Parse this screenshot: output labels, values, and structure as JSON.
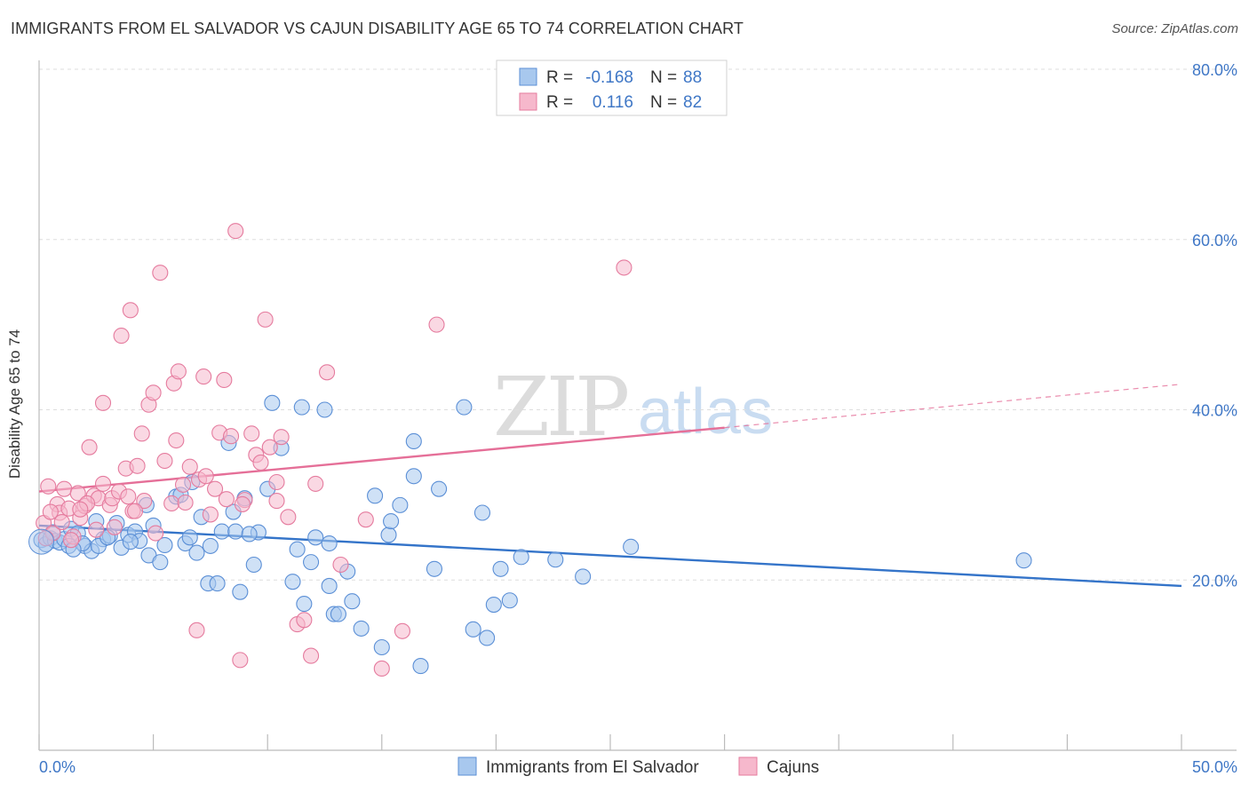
{
  "title": "IMMIGRANTS FROM EL SALVADOR VS CAJUN DISABILITY AGE 65 TO 74 CORRELATION CHART",
  "source": "Source: ZipAtlas.com",
  "watermark": {
    "zip": "ZIP",
    "atlas": "atlas"
  },
  "legend_box": {
    "rows": [
      {
        "r_label": "R =",
        "r_value": "-0.168",
        "n_label": "N =",
        "n_value": "88",
        "color": "#a8c8ee"
      },
      {
        "r_label": "R =",
        "r_value": "0.116",
        "n_label": "N =",
        "n_value": "82",
        "color": "#f6b8cc"
      }
    ]
  },
  "bottom_legend": [
    {
      "label": "Immigrants from El Salvador",
      "color": "#a8c8ee"
    },
    {
      "label": "Cajuns",
      "color": "#f6b8cc"
    }
  ],
  "chart_data": {
    "type": "scatter",
    "title": "IMMIGRANTS FROM EL SALVADOR VS CAJUN DISABILITY AGE 65 TO 74 CORRELATION CHART",
    "xlabel": "",
    "ylabel": "Disability Age 65 to 74",
    "xlim": [
      0,
      50
    ],
    "ylim": [
      0,
      80
    ],
    "x_tick_labels": [
      {
        "value": 0,
        "label": "0.0%"
      },
      {
        "value": 50,
        "label": "50.0%"
      }
    ],
    "y_tick_labels": [
      {
        "value": 20,
        "label": "20.0%"
      },
      {
        "value": 40,
        "label": "40.0%"
      },
      {
        "value": 60,
        "label": "60.0%"
      },
      {
        "value": 80,
        "label": "80.0%"
      }
    ],
    "grid": true,
    "legend_position": "top-center",
    "series": [
      {
        "name": "Immigrants from El Salvador",
        "color": "#5b8fd6",
        "fill": "#a8c8ee",
        "trend": {
          "x0": 0,
          "y0": 26.4,
          "x1": 50,
          "y1": 19.3,
          "color": "#3474c9"
        },
        "points": [
          [
            0.1,
            24.7
          ],
          [
            0.3,
            24.2
          ],
          [
            0.5,
            24.9
          ],
          [
            0.7,
            24.6
          ],
          [
            0.9,
            24.4
          ],
          [
            1.1,
            24.8
          ],
          [
            1.3,
            24.0
          ],
          [
            1.4,
            26.0
          ],
          [
            1.7,
            25.5
          ],
          [
            2.0,
            24.0
          ],
          [
            2.3,
            23.4
          ],
          [
            2.5,
            26.9
          ],
          [
            2.8,
            24.8
          ],
          [
            3.1,
            25.2
          ],
          [
            3.4,
            26.7
          ],
          [
            3.6,
            23.8
          ],
          [
            3.9,
            25.3
          ],
          [
            4.2,
            25.7
          ],
          [
            4.4,
            24.6
          ],
          [
            4.7,
            28.8
          ],
          [
            4.8,
            22.9
          ],
          [
            5.0,
            26.4
          ],
          [
            5.3,
            22.1
          ],
          [
            5.5,
            24.1
          ],
          [
            6.0,
            29.8
          ],
          [
            6.2,
            30.0
          ],
          [
            6.4,
            24.3
          ],
          [
            6.7,
            31.5
          ],
          [
            6.9,
            23.2
          ],
          [
            7.1,
            27.4
          ],
          [
            7.4,
            19.6
          ],
          [
            7.5,
            24.0
          ],
          [
            7.8,
            19.6
          ],
          [
            8.0,
            25.7
          ],
          [
            8.3,
            36.1
          ],
          [
            8.5,
            28.0
          ],
          [
            8.6,
            25.7
          ],
          [
            8.8,
            18.6
          ],
          [
            9.0,
            29.6
          ],
          [
            9.4,
            21.8
          ],
          [
            9.6,
            25.6
          ],
          [
            10.0,
            30.7
          ],
          [
            10.2,
            40.8
          ],
          [
            10.6,
            35.5
          ],
          [
            11.1,
            19.8
          ],
          [
            11.3,
            23.6
          ],
          [
            11.5,
            40.3
          ],
          [
            11.6,
            17.2
          ],
          [
            11.9,
            22.1
          ],
          [
            12.1,
            25.0
          ],
          [
            12.5,
            40.0
          ],
          [
            12.7,
            19.3
          ],
          [
            12.9,
            16.0
          ],
          [
            13.1,
            16.0
          ],
          [
            13.5,
            21.0
          ],
          [
            13.7,
            17.5
          ],
          [
            14.1,
            14.3
          ],
          [
            14.7,
            29.9
          ],
          [
            15.0,
            12.1
          ],
          [
            15.3,
            25.3
          ],
          [
            15.8,
            28.8
          ],
          [
            16.4,
            36.3
          ],
          [
            16.4,
            32.2
          ],
          [
            16.7,
            9.9
          ],
          [
            17.3,
            21.3
          ],
          [
            17.5,
            30.7
          ],
          [
            18.6,
            40.3
          ],
          [
            19.0,
            14.2
          ],
          [
            19.4,
            27.9
          ],
          [
            19.6,
            13.2
          ],
          [
            19.9,
            17.1
          ],
          [
            20.2,
            21.3
          ],
          [
            20.6,
            17.6
          ],
          [
            21.1,
            22.7
          ],
          [
            22.6,
            22.4
          ],
          [
            23.8,
            20.4
          ],
          [
            25.9,
            23.9
          ],
          [
            43.1,
            22.3
          ],
          [
            1.9,
            24.3
          ],
          [
            0.6,
            25.6
          ],
          [
            2.6,
            24.0
          ],
          [
            4.0,
            24.5
          ],
          [
            6.6,
            25.0
          ],
          [
            9.2,
            25.4
          ],
          [
            12.7,
            24.3
          ],
          [
            15.4,
            26.9
          ],
          [
            3.0,
            25.0
          ],
          [
            1.5,
            23.6
          ]
        ]
      },
      {
        "name": "Cajuns",
        "color": "#e57b9e",
        "fill": "#f6b8cc",
        "trend": {
          "x0": 0,
          "y0": 30.4,
          "x1": 30,
          "y1": 37.9,
          "color": "#e56f98",
          "dashed_to": {
            "x": 50,
            "y": 43.0
          }
        },
        "points": [
          [
            0.2,
            26.7
          ],
          [
            0.4,
            31.0
          ],
          [
            0.6,
            25.5
          ],
          [
            0.8,
            28.9
          ],
          [
            0.9,
            27.9
          ],
          [
            1.1,
            30.7
          ],
          [
            1.3,
            28.4
          ],
          [
            1.5,
            25.1
          ],
          [
            1.7,
            30.2
          ],
          [
            1.8,
            27.3
          ],
          [
            2.0,
            28.7
          ],
          [
            2.2,
            35.6
          ],
          [
            2.4,
            29.9
          ],
          [
            2.6,
            29.6
          ],
          [
            2.8,
            31.3
          ],
          [
            2.8,
            40.8
          ],
          [
            3.1,
            28.8
          ],
          [
            3.2,
            29.6
          ],
          [
            3.3,
            26.2
          ],
          [
            3.6,
            48.7
          ],
          [
            3.8,
            33.1
          ],
          [
            4.0,
            51.7
          ],
          [
            4.1,
            28.1
          ],
          [
            4.3,
            33.4
          ],
          [
            4.5,
            37.2
          ],
          [
            4.8,
            40.6
          ],
          [
            5.0,
            42.0
          ],
          [
            5.3,
            56.1
          ],
          [
            5.5,
            34.0
          ],
          [
            5.9,
            43.1
          ],
          [
            6.1,
            44.5
          ],
          [
            6.3,
            31.2
          ],
          [
            6.6,
            33.3
          ],
          [
            6.9,
            14.1
          ],
          [
            7.2,
            43.9
          ],
          [
            7.5,
            27.7
          ],
          [
            7.7,
            30.7
          ],
          [
            7.9,
            37.3
          ],
          [
            8.1,
            43.5
          ],
          [
            8.4,
            36.9
          ],
          [
            8.6,
            61.0
          ],
          [
            8.8,
            10.6
          ],
          [
            9.0,
            29.4
          ],
          [
            9.3,
            37.2
          ],
          [
            9.5,
            34.7
          ],
          [
            9.9,
            50.6
          ],
          [
            10.1,
            35.6
          ],
          [
            10.4,
            29.3
          ],
          [
            10.6,
            36.8
          ],
          [
            10.9,
            27.4
          ],
          [
            11.3,
            14.8
          ],
          [
            11.6,
            15.3
          ],
          [
            11.9,
            11.1
          ],
          [
            12.1,
            31.3
          ],
          [
            12.6,
            44.4
          ],
          [
            13.2,
            21.8
          ],
          [
            14.3,
            27.1
          ],
          [
            15.0,
            9.6
          ],
          [
            15.9,
            14.0
          ],
          [
            17.4,
            50.0
          ],
          [
            25.6,
            56.7
          ],
          [
            1.0,
            26.8
          ],
          [
            2.1,
            29.0
          ],
          [
            3.5,
            30.4
          ],
          [
            4.6,
            29.3
          ],
          [
            5.8,
            29.0
          ],
          [
            7.0,
            31.8
          ],
          [
            8.2,
            29.5
          ],
          [
            9.7,
            33.8
          ],
          [
            10.4,
            31.5
          ],
          [
            0.5,
            28.0
          ],
          [
            1.4,
            24.7
          ],
          [
            2.5,
            25.9
          ],
          [
            3.9,
            29.8
          ],
          [
            6.4,
            29.1
          ],
          [
            7.3,
            32.2
          ],
          [
            0.3,
            24.9
          ],
          [
            1.8,
            28.3
          ],
          [
            4.2,
            28.1
          ],
          [
            5.1,
            25.5
          ],
          [
            6.0,
            36.4
          ],
          [
            8.9,
            28.9
          ]
        ]
      }
    ]
  }
}
